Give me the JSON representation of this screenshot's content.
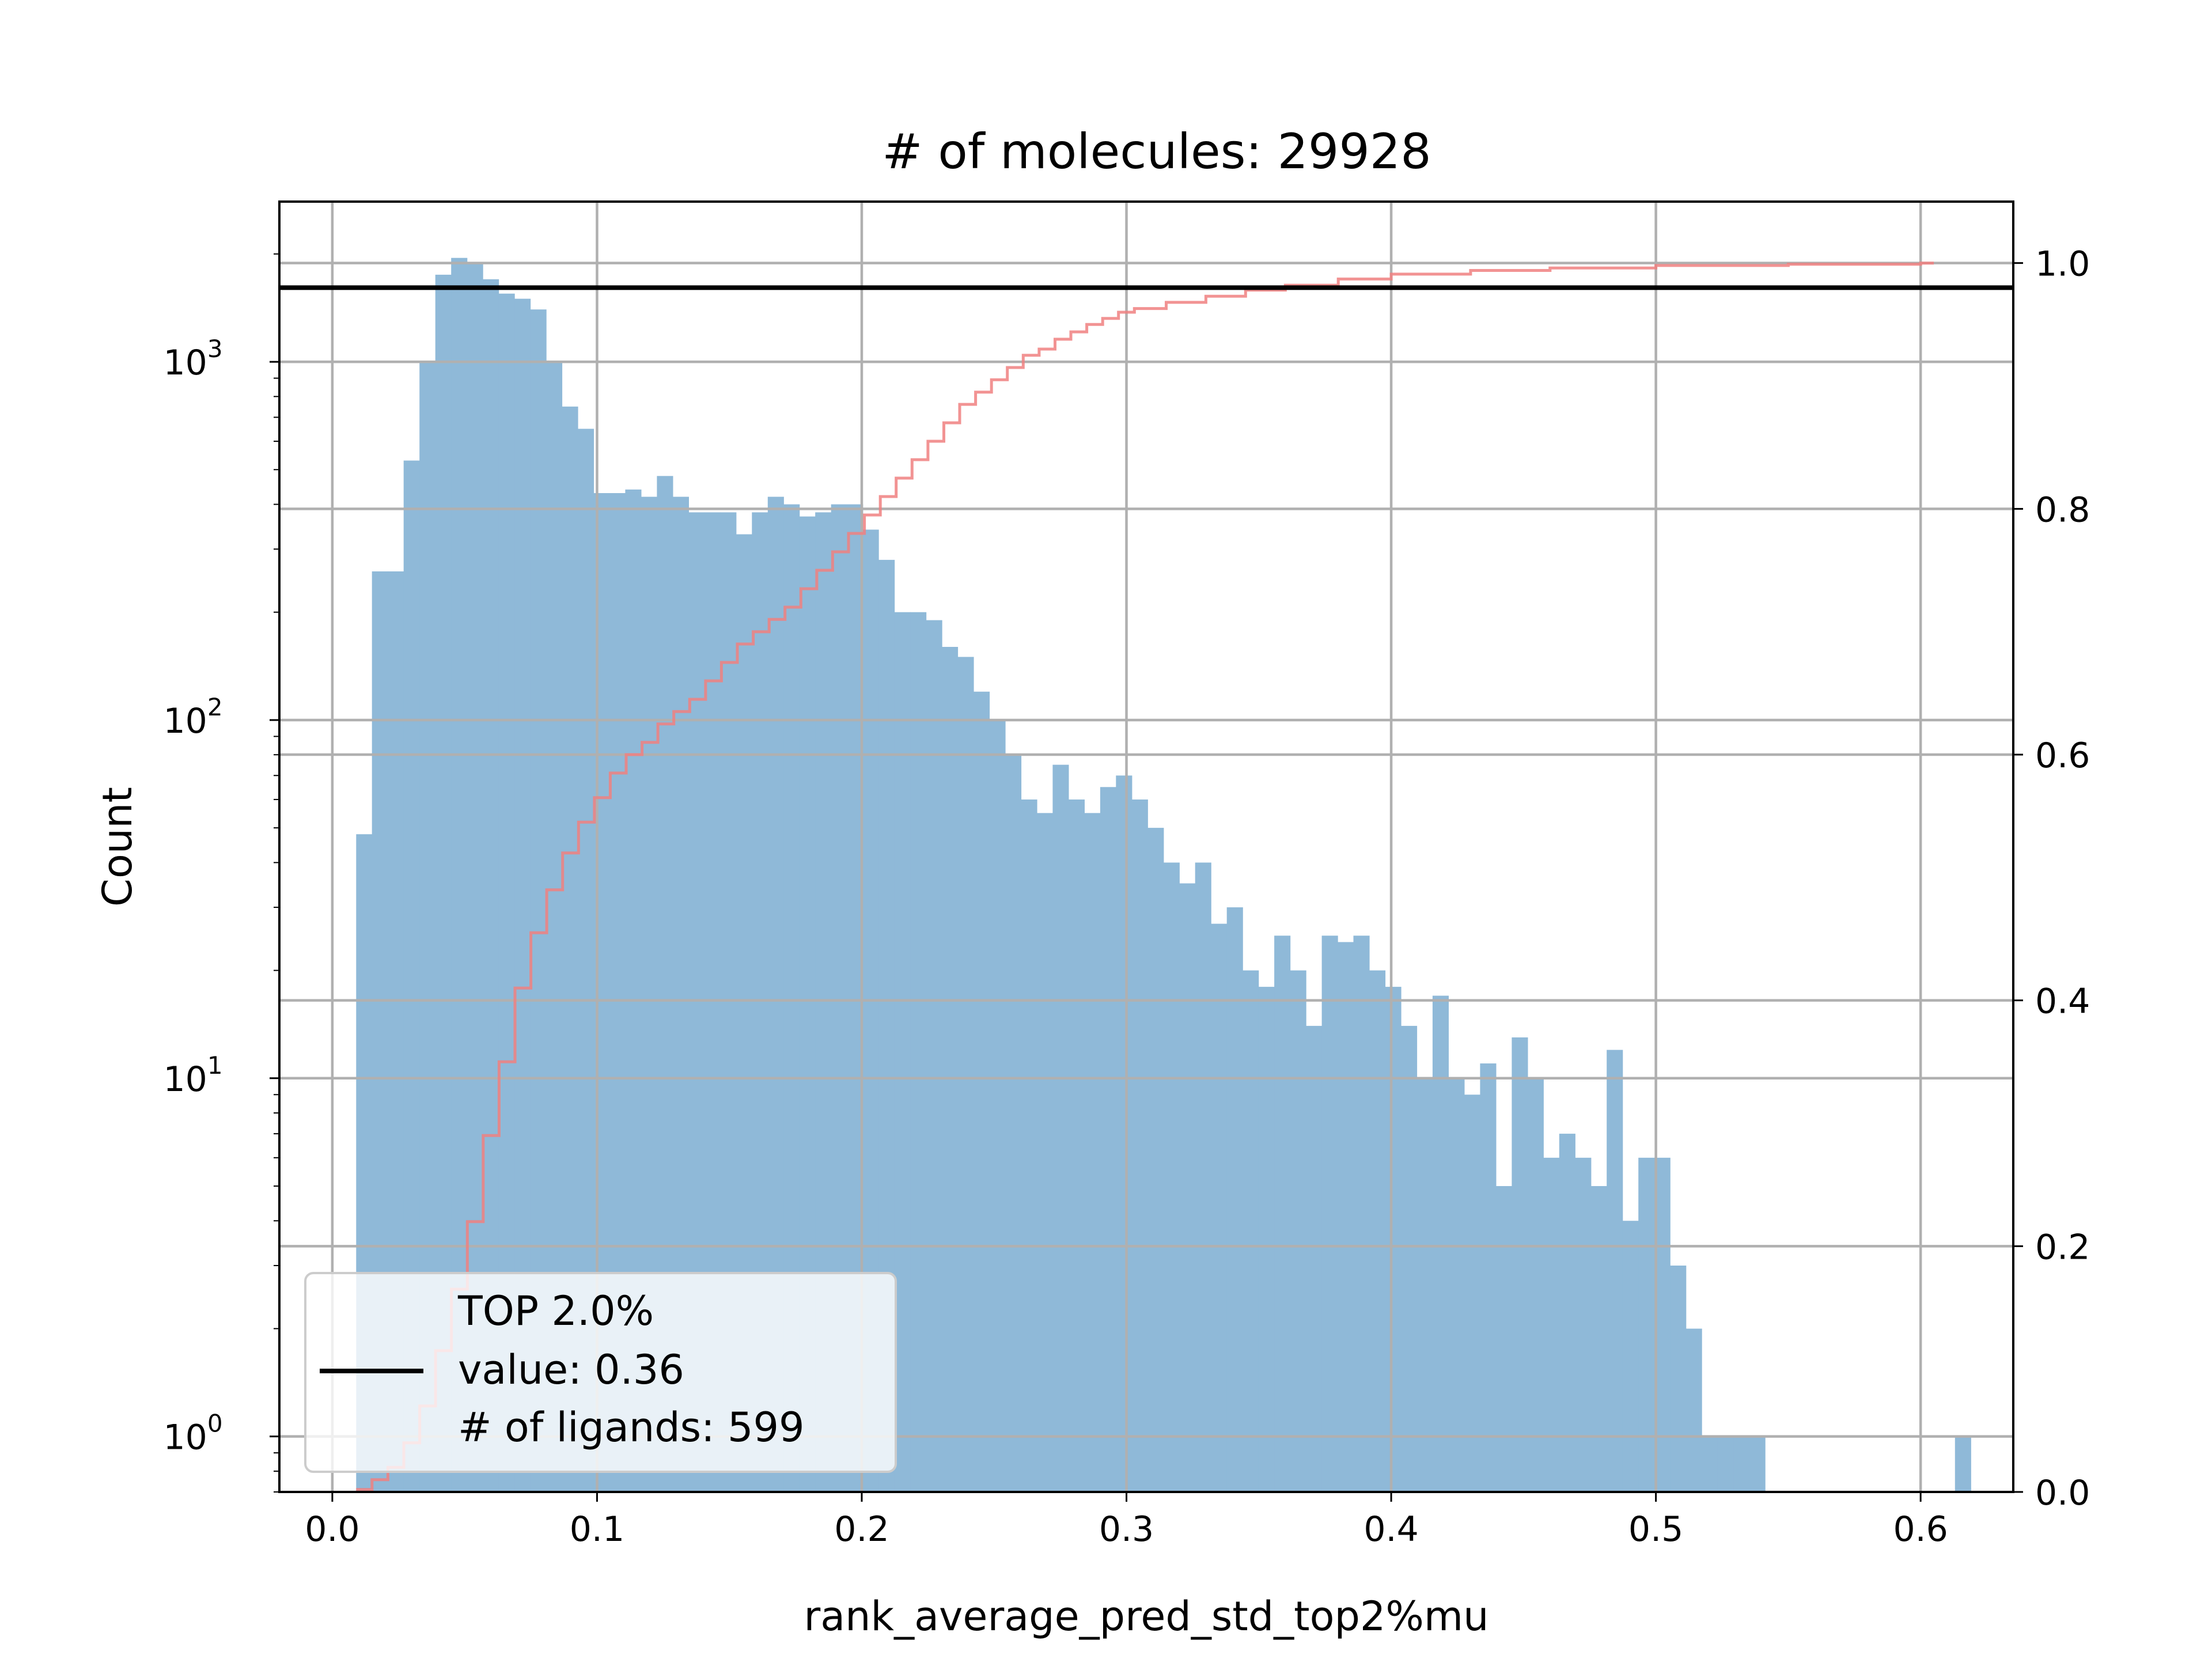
{
  "chart_data": {
    "type": "bar",
    "title": "# of molecules: 29928",
    "xlabel": "rank_average_pred_std_top2%mu",
    "ylabel": "Count",
    "yscale": "log",
    "xlim": [
      -0.02,
      0.635
    ],
    "ylim": [
      0.7,
      2800
    ],
    "y2lim": [
      0.0,
      1.05
    ],
    "grid": true,
    "bar_color": "#8fb9d8",
    "x_ticks": [
      {
        "v": 0.0,
        "label": "0.0"
      },
      {
        "v": 0.1,
        "label": "0.1"
      },
      {
        "v": 0.2,
        "label": "0.2"
      },
      {
        "v": 0.3,
        "label": "0.3"
      },
      {
        "v": 0.4,
        "label": "0.4"
      },
      {
        "v": 0.5,
        "label": "0.5"
      },
      {
        "v": 0.6,
        "label": "0.6"
      }
    ],
    "y_ticks": [
      {
        "v": 1,
        "base": "10",
        "exp": "0"
      },
      {
        "v": 10,
        "base": "10",
        "exp": "1"
      },
      {
        "v": 100,
        "base": "10",
        "exp": "2"
      },
      {
        "v": 1000,
        "base": "10",
        "exp": "3"
      }
    ],
    "y2_ticks": [
      {
        "v": 0.0,
        "label": "0.0"
      },
      {
        "v": 0.2,
        "label": "0.2"
      },
      {
        "v": 0.4,
        "label": "0.4"
      },
      {
        "v": 0.6,
        "label": "0.6"
      },
      {
        "v": 0.8,
        "label": "0.8"
      },
      {
        "v": 1.0,
        "label": "1.0"
      }
    ],
    "bins": {
      "start": 0.009,
      "width": 0.00598,
      "counts": [
        48,
        260,
        260,
        530,
        1000,
        1750,
        1950,
        1900,
        1700,
        1550,
        1500,
        1400,
        1000,
        750,
        650,
        430,
        430,
        440,
        420,
        480,
        420,
        380,
        380,
        380,
        330,
        380,
        420,
        400,
        370,
        380,
        400,
        400,
        340,
        280,
        200,
        200,
        190,
        160,
        150,
        120,
        100,
        80,
        60,
        55,
        75,
        60,
        55,
        65,
        70,
        60,
        50,
        40,
        35,
        40,
        27,
        30,
        20,
        18,
        25,
        20,
        14,
        25,
        24,
        25,
        20,
        18,
        14,
        10,
        17,
        10,
        9,
        11,
        5,
        13,
        10,
        6,
        7,
        6,
        5,
        12,
        4,
        6,
        6,
        3,
        2,
        1,
        1,
        1,
        1,
        0,
        0,
        0,
        0,
        0,
        0,
        0,
        0,
        0,
        0,
        0,
        0,
        1
      ]
    },
    "cdf_color": "#f08080",
    "cdf": {
      "x": [
        0.009,
        0.015,
        0.021,
        0.027,
        0.033,
        0.039,
        0.045,
        0.051,
        0.057,
        0.063,
        0.069,
        0.075,
        0.081,
        0.087,
        0.093,
        0.099,
        0.105,
        0.111,
        0.117,
        0.123,
        0.129,
        0.135,
        0.141,
        0.147,
        0.153,
        0.159,
        0.165,
        0.171,
        0.177,
        0.183,
        0.189,
        0.195,
        0.201,
        0.207,
        0.213,
        0.219,
        0.225,
        0.231,
        0.237,
        0.243,
        0.249,
        0.255,
        0.261,
        0.267,
        0.273,
        0.279,
        0.285,
        0.291,
        0.297,
        0.303,
        0.315,
        0.33,
        0.345,
        0.36,
        0.38,
        0.4,
        0.43,
        0.46,
        0.5,
        0.55,
        0.6,
        0.605
      ],
      "y": [
        0.002,
        0.01,
        0.02,
        0.04,
        0.07,
        0.115,
        0.165,
        0.22,
        0.29,
        0.35,
        0.41,
        0.455,
        0.49,
        0.52,
        0.545,
        0.565,
        0.585,
        0.6,
        0.61,
        0.625,
        0.635,
        0.645,
        0.66,
        0.675,
        0.69,
        0.7,
        0.71,
        0.72,
        0.735,
        0.75,
        0.765,
        0.78,
        0.795,
        0.81,
        0.825,
        0.84,
        0.855,
        0.87,
        0.885,
        0.895,
        0.905,
        0.915,
        0.925,
        0.93,
        0.938,
        0.944,
        0.95,
        0.955,
        0.96,
        0.963,
        0.968,
        0.973,
        0.978,
        0.982,
        0.987,
        0.991,
        0.994,
        0.996,
        0.998,
        0.999,
        1.0,
        1.0
      ]
    },
    "threshold_line_y2": 0.98,
    "legend": {
      "lines": [
        "TOP 2.0%",
        "value: 0.36",
        "# of ligands: 599"
      ],
      "position": "lower-left"
    }
  }
}
